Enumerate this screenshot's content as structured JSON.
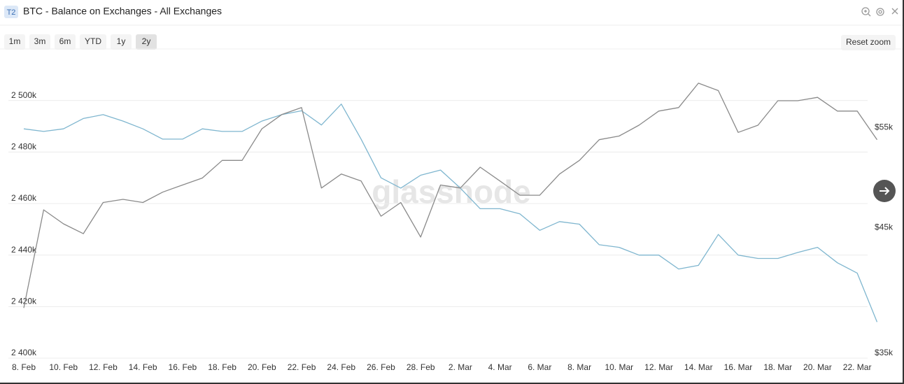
{
  "header": {
    "badge": "T2"
  },
  "chart_data": {
    "type": "line",
    "title": "BTC - Balance on Exchanges - All Exchanges",
    "range_buttons": [
      "1m",
      "3m",
      "6m",
      "YTD",
      "1y",
      "2y"
    ],
    "active_range": "2y",
    "reset_zoom": "Reset zoom",
    "watermark": "glassnode",
    "categories": [
      "8. Feb",
      null,
      "10. Feb",
      null,
      "12. Feb",
      null,
      "14. Feb",
      null,
      "16. Feb",
      null,
      "18. Feb",
      null,
      "20. Feb",
      null,
      "22. Feb",
      null,
      "24. Feb",
      null,
      "26. Feb",
      null,
      "28. Feb",
      null,
      "2. Mar",
      null,
      "4. Mar",
      null,
      "6. Mar",
      null,
      "8. Mar",
      null,
      "10. Mar",
      null,
      "12. Mar",
      null,
      "14. Mar",
      null,
      "16. Mar",
      null,
      "18. Mar",
      null,
      "20. Mar",
      null,
      "22. Mar",
      null
    ],
    "series": [
      {
        "color": "#7fb6cf",
        "values": [
          2489000,
          2488000,
          2489000,
          2493000,
          2494500,
          2492000,
          2489000,
          2485000,
          2485000,
          2489000,
          2488000,
          2488000,
          2492000,
          2494500,
          2496000,
          2490500,
          2498600,
          2485000,
          2470000,
          2466000,
          2471000,
          2473000,
          2466000,
          2458000,
          2458000,
          2456000,
          2449600,
          2453000,
          2452000,
          2444000,
          2443000,
          2440000,
          2440000,
          2434600,
          2436000,
          2448000,
          2440000,
          2438700,
          2438700,
          2441000,
          2443000,
          2437000,
          2433000,
          2414000
        ]
      },
      {
        "color": "#8a8a8a",
        "axis": "y2",
        "values": [
          38700,
          47100,
          45800,
          44900,
          47800,
          48100,
          47800,
          48800,
          49500,
          50200,
          52000,
          52000,
          55400,
          57000,
          57800,
          49200,
          50600,
          49900,
          46500,
          47800,
          44600,
          49500,
          49200,
          51300,
          49900,
          48500,
          48500,
          50600,
          52000,
          54200,
          54600,
          55800,
          57400,
          57800,
          60700,
          59800,
          55000,
          55800,
          58600,
          58600,
          59000,
          57400,
          57400,
          54200
        ]
      }
    ],
    "ylim": [
      2400000,
      2520000
    ],
    "yticks": [
      {
        "value": 2400000,
        "label": "2 400k"
      },
      {
        "value": 2420000,
        "label": "2 420k"
      },
      {
        "value": 2440000,
        "label": "2 440k"
      },
      {
        "value": 2460000,
        "label": "2 460k"
      },
      {
        "value": 2480000,
        "label": "2 480k"
      },
      {
        "value": 2500000,
        "label": "2 500k"
      }
    ],
    "y2lim": [
      35000,
      65000
    ],
    "y2_log": true,
    "y2ticks": [
      {
        "value": 35000,
        "label": "$35k"
      },
      {
        "value": 45000,
        "label": "$45k"
      },
      {
        "value": 55000,
        "label": "$55k"
      }
    ],
    "grid": true
  }
}
